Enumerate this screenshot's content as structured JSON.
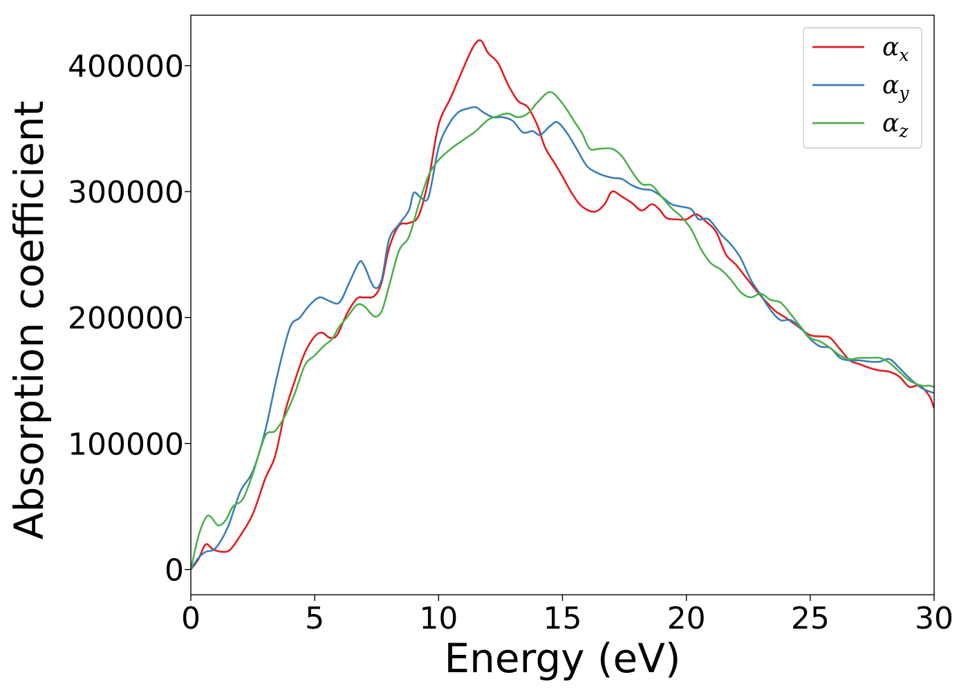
{
  "chart_data": {
    "type": "line",
    "title": "",
    "xlabel": "Energy (eV)",
    "ylabel": "Absorption coefficient",
    "xlim": [
      0,
      30
    ],
    "ylim": [
      -20000,
      440000
    ],
    "xticks": [
      0,
      5,
      10,
      15,
      20,
      25,
      30
    ],
    "yticks": [
      0,
      100000,
      200000,
      300000,
      400000
    ],
    "xtick_labels": [
      "0",
      "5",
      "10",
      "15",
      "20",
      "25",
      "30"
    ],
    "ytick_labels": [
      "0",
      "100000",
      "200000",
      "300000",
      "400000"
    ],
    "grid": false,
    "legend_position": "top-right",
    "series": [
      {
        "name": "αx",
        "label_base": "α",
        "label_sub": "x",
        "color": "#e41a1c",
        "points": [
          [
            0,
            0
          ],
          [
            0.3,
            8000
          ],
          [
            0.6,
            20000
          ],
          [
            0.9,
            16000
          ],
          [
            1.3,
            14000
          ],
          [
            1.6,
            16000
          ],
          [
            2.0,
            27000
          ],
          [
            2.5,
            44000
          ],
          [
            3.0,
            72000
          ],
          [
            3.4,
            90000
          ],
          [
            3.8,
            125000
          ],
          [
            4.2,
            150000
          ],
          [
            4.6,
            172000
          ],
          [
            5.0,
            185000
          ],
          [
            5.3,
            188000
          ],
          [
            5.6,
            184000
          ],
          [
            5.9,
            186000
          ],
          [
            6.3,
            203000
          ],
          [
            6.7,
            215000
          ],
          [
            7.0,
            216000
          ],
          [
            7.4,
            217000
          ],
          [
            7.7,
            228000
          ],
          [
            8.0,
            255000
          ],
          [
            8.4,
            273000
          ],
          [
            8.8,
            275000
          ],
          [
            9.2,
            281000
          ],
          [
            9.6,
            310000
          ],
          [
            10.0,
            353000
          ],
          [
            10.5,
            375000
          ],
          [
            11.0,
            398000
          ],
          [
            11.4,
            415000
          ],
          [
            11.7,
            420000
          ],
          [
            12.0,
            410000
          ],
          [
            12.4,
            402000
          ],
          [
            12.8,
            385000
          ],
          [
            13.2,
            372000
          ],
          [
            13.6,
            367000
          ],
          [
            14.0,
            352000
          ],
          [
            14.3,
            335000
          ],
          [
            14.7,
            322000
          ],
          [
            15.0,
            312000
          ],
          [
            15.4,
            298000
          ],
          [
            15.8,
            288000
          ],
          [
            16.3,
            284000
          ],
          [
            16.7,
            290000
          ],
          [
            17.0,
            300000
          ],
          [
            17.4,
            296000
          ],
          [
            17.8,
            291000
          ],
          [
            18.2,
            285000
          ],
          [
            18.6,
            290000
          ],
          [
            18.9,
            286000
          ],
          [
            19.2,
            279000
          ],
          [
            19.6,
            278000
          ],
          [
            20.0,
            278000
          ],
          [
            20.4,
            282000
          ],
          [
            20.8,
            276000
          ],
          [
            21.2,
            268000
          ],
          [
            21.6,
            250000
          ],
          [
            22.0,
            242000
          ],
          [
            22.4,
            232000
          ],
          [
            22.8,
            222000
          ],
          [
            23.2,
            213000
          ],
          [
            23.6,
            205000
          ],
          [
            24.0,
            200000
          ],
          [
            24.5,
            193000
          ],
          [
            25.0,
            186000
          ],
          [
            25.5,
            185000
          ],
          [
            25.8,
            184000
          ],
          [
            26.2,
            175000
          ],
          [
            26.6,
            166000
          ],
          [
            27.0,
            163000
          ],
          [
            27.4,
            160000
          ],
          [
            27.8,
            158000
          ],
          [
            28.2,
            157000
          ],
          [
            28.6,
            153000
          ],
          [
            29.0,
            145000
          ],
          [
            29.4,
            146000
          ],
          [
            29.8,
            138000
          ],
          [
            30.0,
            128000
          ]
        ]
      },
      {
        "name": "αy",
        "label_base": "α",
        "label_sub": "y",
        "color": "#377eb8",
        "points": [
          [
            0,
            0
          ],
          [
            0.3,
            9000
          ],
          [
            0.6,
            14000
          ],
          [
            1.0,
            17000
          ],
          [
            1.5,
            34000
          ],
          [
            2.0,
            62000
          ],
          [
            2.5,
            78000
          ],
          [
            3.0,
            110000
          ],
          [
            3.5,
            155000
          ],
          [
            4.0,
            192000
          ],
          [
            4.4,
            200000
          ],
          [
            4.8,
            210000
          ],
          [
            5.2,
            216000
          ],
          [
            5.6,
            213000
          ],
          [
            6.0,
            212000
          ],
          [
            6.4,
            228000
          ],
          [
            6.8,
            244000
          ],
          [
            7.0,
            241000
          ],
          [
            7.4,
            224000
          ],
          [
            7.7,
            230000
          ],
          [
            8.0,
            262000
          ],
          [
            8.4,
            274000
          ],
          [
            8.8,
            285000
          ],
          [
            9.0,
            299000
          ],
          [
            9.3,
            295000
          ],
          [
            9.6,
            296000
          ],
          [
            10.0,
            335000
          ],
          [
            10.4,
            353000
          ],
          [
            10.8,
            363000
          ],
          [
            11.2,
            366000
          ],
          [
            11.5,
            367000
          ],
          [
            11.8,
            363000
          ],
          [
            12.2,
            359000
          ],
          [
            12.6,
            359000
          ],
          [
            13.0,
            356000
          ],
          [
            13.4,
            347000
          ],
          [
            13.8,
            348000
          ],
          [
            14.1,
            345000
          ],
          [
            14.5,
            352000
          ],
          [
            14.8,
            355000
          ],
          [
            15.2,
            346000
          ],
          [
            15.6,
            333000
          ],
          [
            16.0,
            320000
          ],
          [
            16.5,
            314000
          ],
          [
            17.0,
            311000
          ],
          [
            17.4,
            310000
          ],
          [
            17.8,
            305000
          ],
          [
            18.2,
            302000
          ],
          [
            18.6,
            301000
          ],
          [
            19.0,
            296000
          ],
          [
            19.4,
            290000
          ],
          [
            19.8,
            288000
          ],
          [
            20.2,
            286000
          ],
          [
            20.5,
            278000
          ],
          [
            20.9,
            278000
          ],
          [
            21.4,
            266000
          ],
          [
            21.8,
            258000
          ],
          [
            22.2,
            247000
          ],
          [
            22.6,
            230000
          ],
          [
            23.0,
            218000
          ],
          [
            23.4,
            206000
          ],
          [
            23.8,
            198000
          ],
          [
            24.2,
            198000
          ],
          [
            24.6,
            192000
          ],
          [
            25.0,
            183000
          ],
          [
            25.4,
            177000
          ],
          [
            25.8,
            176000
          ],
          [
            26.2,
            168000
          ],
          [
            26.6,
            166000
          ],
          [
            27.0,
            166000
          ],
          [
            27.4,
            165000
          ],
          [
            27.8,
            165000
          ],
          [
            28.2,
            167000
          ],
          [
            28.6,
            160000
          ],
          [
            29.0,
            152000
          ],
          [
            29.5,
            144000
          ],
          [
            30.0,
            140000
          ]
        ]
      },
      {
        "name": "αz",
        "label_base": "α",
        "label_sub": "z",
        "color": "#4daf4a",
        "points": [
          [
            0,
            0
          ],
          [
            0.3,
            26000
          ],
          [
            0.6,
            41000
          ],
          [
            0.8,
            42000
          ],
          [
            1.1,
            35000
          ],
          [
            1.4,
            39000
          ],
          [
            1.7,
            50000
          ],
          [
            2.1,
            56000
          ],
          [
            2.5,
            76000
          ],
          [
            3.0,
            106000
          ],
          [
            3.4,
            110000
          ],
          [
            3.8,
            122000
          ],
          [
            4.2,
            140000
          ],
          [
            4.6,
            162000
          ],
          [
            5.0,
            170000
          ],
          [
            5.4,
            178000
          ],
          [
            5.7,
            183000
          ],
          [
            6.0,
            193000
          ],
          [
            6.3,
            200000
          ],
          [
            6.7,
            210000
          ],
          [
            7.0,
            209000
          ],
          [
            7.4,
            201000
          ],
          [
            7.7,
            205000
          ],
          [
            8.0,
            225000
          ],
          [
            8.4,
            253000
          ],
          [
            8.8,
            264000
          ],
          [
            9.2,
            290000
          ],
          [
            9.6,
            313000
          ],
          [
            10.0,
            325000
          ],
          [
            10.5,
            334000
          ],
          [
            11.0,
            341000
          ],
          [
            11.5,
            348000
          ],
          [
            12.0,
            357000
          ],
          [
            12.4,
            360000
          ],
          [
            12.8,
            362000
          ],
          [
            13.2,
            359000
          ],
          [
            13.6,
            362000
          ],
          [
            14.0,
            371000
          ],
          [
            14.5,
            379000
          ],
          [
            15.0,
            370000
          ],
          [
            15.5,
            355000
          ],
          [
            15.8,
            346000
          ],
          [
            16.1,
            334000
          ],
          [
            16.5,
            334000
          ],
          [
            17.0,
            334000
          ],
          [
            17.4,
            328000
          ],
          [
            17.8,
            316000
          ],
          [
            18.2,
            306000
          ],
          [
            18.6,
            305000
          ],
          [
            19.0,
            296000
          ],
          [
            19.4,
            287000
          ],
          [
            19.8,
            280000
          ],
          [
            20.2,
            270000
          ],
          [
            20.6,
            254000
          ],
          [
            21.0,
            243000
          ],
          [
            21.4,
            238000
          ],
          [
            21.8,
            230000
          ],
          [
            22.2,
            220000
          ],
          [
            22.6,
            216000
          ],
          [
            23.0,
            219000
          ],
          [
            23.4,
            214000
          ],
          [
            23.8,
            212000
          ],
          [
            24.2,
            203000
          ],
          [
            24.6,
            193000
          ],
          [
            25.0,
            184000
          ],
          [
            25.4,
            181000
          ],
          [
            25.8,
            176000
          ],
          [
            26.2,
            170000
          ],
          [
            26.6,
            167000
          ],
          [
            27.0,
            168000
          ],
          [
            27.4,
            168000
          ],
          [
            27.8,
            168000
          ],
          [
            28.2,
            164000
          ],
          [
            28.6,
            157000
          ],
          [
            29.0,
            150000
          ],
          [
            29.5,
            146000
          ],
          [
            29.8,
            146000
          ],
          [
            30.0,
            145000
          ]
        ]
      }
    ]
  }
}
